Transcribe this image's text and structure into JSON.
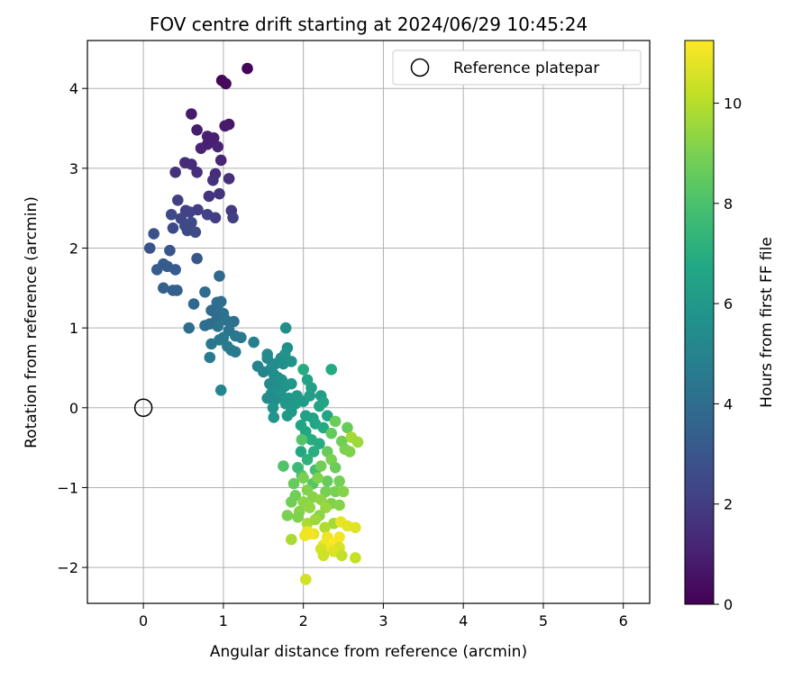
{
  "chart_data": {
    "type": "scatter",
    "title": "FOV centre drift starting at 2024/06/29 10:45:24",
    "xlabel": "Angular distance from reference (arcmin)",
    "ylabel": "Rotation from reference (arcmin)",
    "xlim": [
      -0.7,
      6.33
    ],
    "ylim": [
      -2.45,
      4.6
    ],
    "xticks": [
      0,
      1,
      2,
      3,
      4,
      5,
      6
    ],
    "yticks": [
      -2,
      -1,
      0,
      1,
      2,
      3,
      4
    ],
    "grid": true,
    "legend": {
      "placement": "top-right",
      "entries": [
        "Reference platepar"
      ]
    },
    "colorbar": {
      "label": "Hours from first FF file",
      "range": [
        0,
        11.25
      ],
      "ticks": [
        0,
        2,
        4,
        6,
        8,
        10
      ],
      "colormap": "viridis"
    },
    "reference_point": {
      "x": 0,
      "y": 0,
      "label": "Reference platepar"
    },
    "series": [
      {
        "points": [
          [
            0.98,
            4.1,
            0.2
          ],
          [
            1.03,
            4.06,
            0.3
          ],
          [
            1.3,
            4.25,
            0.1
          ],
          [
            0.6,
            3.68,
            0.8
          ],
          [
            0.67,
            3.48,
            0.9
          ],
          [
            1.07,
            3.55,
            0.7
          ],
          [
            1.02,
            3.53,
            0.8
          ],
          [
            0.8,
            3.4,
            1.0
          ],
          [
            0.88,
            3.38,
            1.0
          ],
          [
            0.93,
            3.27,
            1.1
          ],
          [
            0.72,
            3.25,
            1.1
          ],
          [
            0.8,
            3.3,
            1.0
          ],
          [
            0.97,
            3.1,
            1.2
          ],
          [
            0.52,
            3.07,
            1.4
          ],
          [
            0.6,
            3.05,
            1.4
          ],
          [
            0.4,
            2.95,
            1.6
          ],
          [
            0.67,
            2.95,
            1.5
          ],
          [
            0.9,
            2.93,
            1.4
          ],
          [
            1.07,
            2.87,
            1.5
          ],
          [
            0.87,
            2.85,
            1.6
          ],
          [
            0.95,
            2.68,
            1.7
          ],
          [
            0.82,
            2.65,
            1.7
          ],
          [
            0.43,
            2.6,
            2.1
          ],
          [
            0.53,
            2.47,
            2.1
          ],
          [
            0.68,
            2.48,
            2.0
          ],
          [
            0.58,
            2.45,
            2.2
          ],
          [
            1.1,
            2.47,
            1.9
          ],
          [
            0.35,
            2.42,
            2.4
          ],
          [
            0.8,
            2.42,
            2.2
          ],
          [
            0.9,
            2.38,
            2.0
          ],
          [
            1.12,
            2.38,
            2.1
          ],
          [
            0.47,
            2.37,
            2.3
          ],
          [
            0.6,
            2.32,
            2.4
          ],
          [
            0.52,
            2.28,
            2.5
          ],
          [
            0.37,
            2.25,
            2.5
          ],
          [
            0.55,
            2.22,
            2.5
          ],
          [
            0.65,
            2.2,
            2.6
          ],
          [
            0.13,
            2.18,
            2.8
          ],
          [
            0.08,
            2.0,
            2.9
          ],
          [
            0.33,
            1.97,
            3.0
          ],
          [
            0.67,
            1.87,
            3.0
          ],
          [
            0.25,
            1.8,
            3.2
          ],
          [
            0.3,
            1.77,
            3.2
          ],
          [
            0.17,
            1.73,
            3.3
          ],
          [
            0.4,
            1.73,
            3.2
          ],
          [
            0.95,
            1.65,
            3.8
          ],
          [
            0.25,
            1.5,
            3.5
          ],
          [
            0.37,
            1.47,
            3.4
          ],
          [
            0.42,
            1.47,
            3.4
          ],
          [
            0.77,
            1.45,
            4.0
          ],
          [
            0.97,
            1.33,
            4.0
          ],
          [
            0.63,
            1.3,
            3.8
          ],
          [
            0.92,
            1.32,
            4.1
          ],
          [
            0.85,
            1.22,
            3.9
          ],
          [
            0.95,
            1.2,
            4.1
          ],
          [
            1.0,
            1.18,
            4.2
          ],
          [
            0.92,
            1.12,
            4.0
          ],
          [
            1.03,
            1.1,
            4.3
          ],
          [
            0.83,
            1.05,
            4.0
          ],
          [
            1.13,
            1.08,
            4.2
          ],
          [
            0.77,
            1.03,
            4.1
          ],
          [
            0.93,
            1.02,
            4.3
          ],
          [
            0.57,
            1.0,
            4.0
          ],
          [
            1.07,
            0.97,
            4.3
          ],
          [
            1.15,
            0.9,
            4.5
          ],
          [
            1.0,
            0.88,
            4.6
          ],
          [
            0.95,
            0.85,
            4.5
          ],
          [
            1.22,
            0.88,
            4.5
          ],
          [
            0.85,
            0.8,
            4.5
          ],
          [
            1.05,
            0.77,
            4.6
          ],
          [
            1.1,
            0.72,
            4.7
          ],
          [
            1.15,
            0.7,
            4.6
          ],
          [
            0.83,
            0.63,
            4.6
          ],
          [
            1.38,
            0.82,
            4.8
          ],
          [
            1.78,
            1.0,
            5.5
          ],
          [
            0.97,
            0.22,
            5.1
          ],
          [
            1.43,
            0.52,
            5.0
          ],
          [
            1.55,
            0.62,
            5.2
          ],
          [
            1.55,
            0.67,
            5.3
          ],
          [
            1.65,
            0.55,
            5.4
          ],
          [
            1.72,
            0.62,
            5.5
          ],
          [
            1.8,
            0.75,
            5.6
          ],
          [
            1.77,
            0.67,
            5.7
          ],
          [
            1.75,
            0.55,
            5.6
          ],
          [
            1.85,
            0.58,
            5.7
          ],
          [
            1.6,
            0.5,
            5.4
          ],
          [
            1.5,
            0.45,
            5.1
          ],
          [
            1.63,
            0.42,
            5.4
          ],
          [
            1.68,
            0.38,
            5.6
          ],
          [
            1.73,
            0.35,
            5.6
          ],
          [
            1.58,
            0.3,
            5.3
          ],
          [
            1.67,
            0.25,
            5.5
          ],
          [
            1.77,
            0.27,
            5.7
          ],
          [
            1.85,
            0.3,
            5.9
          ],
          [
            1.6,
            0.18,
            5.6
          ],
          [
            1.73,
            0.15,
            5.8
          ],
          [
            1.82,
            0.12,
            5.9
          ],
          [
            1.92,
            0.15,
            6.0
          ],
          [
            1.55,
            0.12,
            5.3
          ],
          [
            1.65,
            0.1,
            5.5
          ],
          [
            1.78,
            0.05,
            5.9
          ],
          [
            1.9,
            0.05,
            6.0
          ],
          [
            2.0,
            0.08,
            6.1
          ],
          [
            2.08,
            0.15,
            6.2
          ],
          [
            2.1,
            0.25,
            6.3
          ],
          [
            2.22,
            0.15,
            6.2
          ],
          [
            2.05,
            0.35,
            6.5
          ],
          [
            1.62,
            0.0,
            5.7
          ],
          [
            1.85,
            -0.05,
            6.0
          ],
          [
            2.2,
            0.02,
            6.5
          ],
          [
            2.35,
            0.48,
            6.8
          ],
          [
            2.0,
            0.48,
            6.9
          ],
          [
            2.25,
            0.07,
            6.6
          ],
          [
            1.63,
            -0.12,
            5.8
          ],
          [
            1.8,
            -0.1,
            6.0
          ],
          [
            2.03,
            -0.1,
            6.4
          ],
          [
            2.12,
            -0.13,
            6.5
          ],
          [
            2.3,
            -0.1,
            6.6
          ],
          [
            1.97,
            -0.22,
            6.6
          ],
          [
            2.15,
            -0.2,
            6.7
          ],
          [
            2.4,
            -0.17,
            8.7
          ],
          [
            2.25,
            -0.25,
            6.8
          ],
          [
            2.55,
            -0.25,
            8.6
          ],
          [
            2.03,
            -0.3,
            6.7
          ],
          [
            2.1,
            -0.4,
            6.9
          ],
          [
            2.35,
            -0.32,
            8.5
          ],
          [
            1.98,
            -0.4,
            8.2
          ],
          [
            1.97,
            -0.55,
            6.7
          ],
          [
            2.2,
            -0.45,
            6.9
          ],
          [
            2.48,
            -0.42,
            8.8
          ],
          [
            2.6,
            -0.37,
            9.7
          ],
          [
            2.68,
            -0.43,
            9.6
          ],
          [
            2.13,
            -0.55,
            7.0
          ],
          [
            2.05,
            -0.65,
            7.2
          ],
          [
            2.3,
            -0.55,
            8.6
          ],
          [
            2.52,
            -0.52,
            9.0
          ],
          [
            2.58,
            -0.55,
            9.1
          ],
          [
            2.35,
            -0.65,
            9.0
          ],
          [
            1.93,
            -0.75,
            7.6
          ],
          [
            2.15,
            -0.78,
            7.8
          ],
          [
            2.4,
            -0.75,
            8.7
          ],
          [
            1.75,
            -0.73,
            8.1
          ],
          [
            2.22,
            -0.73,
            8.8
          ],
          [
            1.98,
            -0.85,
            8.0
          ],
          [
            2.12,
            -0.95,
            8.2
          ],
          [
            2.3,
            -0.92,
            8.6
          ],
          [
            1.88,
            -0.95,
            8.6
          ],
          [
            2.0,
            -0.88,
            9.0
          ],
          [
            2.18,
            -0.88,
            9.1
          ],
          [
            2.45,
            -0.92,
            8.9
          ],
          [
            2.05,
            -1.03,
            9.1
          ],
          [
            2.28,
            -1.05,
            8.9
          ],
          [
            1.9,
            -1.1,
            8.8
          ],
          [
            2.12,
            -1.12,
            9.2
          ],
          [
            2.4,
            -1.05,
            9.0
          ],
          [
            2.5,
            -1.05,
            9.2
          ],
          [
            2.0,
            -1.18,
            9.3
          ],
          [
            2.22,
            -1.15,
            9.3
          ],
          [
            2.35,
            -1.2,
            9.1
          ],
          [
            2.45,
            -1.22,
            9.2
          ],
          [
            1.95,
            -1.3,
            9.2
          ],
          [
            1.85,
            -1.18,
            8.8
          ],
          [
            2.08,
            -1.25,
            9.4
          ],
          [
            2.28,
            -1.25,
            9.5
          ],
          [
            1.93,
            -1.37,
            9.1
          ],
          [
            2.2,
            -1.35,
            9.3
          ],
          [
            2.38,
            -1.45,
            9.7
          ],
          [
            1.8,
            -1.35,
            9.0
          ],
          [
            2.05,
            -1.45,
            9.8
          ],
          [
            2.15,
            -1.4,
            9.6
          ],
          [
            2.27,
            -1.5,
            9.9
          ],
          [
            2.47,
            -1.43,
            10.9
          ],
          [
            2.55,
            -1.48,
            10.8
          ],
          [
            2.65,
            -1.5,
            10.7
          ],
          [
            2.05,
            -1.55,
            10.8
          ],
          [
            2.13,
            -1.58,
            10.9
          ],
          [
            2.08,
            -1.58,
            11.1
          ],
          [
            2.02,
            -1.6,
            11.0
          ],
          [
            2.3,
            -1.62,
            11.0
          ],
          [
            2.38,
            -1.7,
            11.2
          ],
          [
            2.45,
            -1.62,
            11.1
          ],
          [
            2.25,
            -1.72,
            11.0
          ],
          [
            2.45,
            -1.75,
            10.6
          ],
          [
            2.33,
            -1.77,
            11.1
          ],
          [
            2.22,
            -1.77,
            10.5
          ],
          [
            2.38,
            -1.8,
            10.7
          ],
          [
            1.85,
            -1.65,
            9.8
          ],
          [
            2.25,
            -1.85,
            10.4
          ],
          [
            2.48,
            -1.85,
            10.2
          ],
          [
            2.65,
            -1.88,
            10.3
          ],
          [
            2.03,
            -2.15,
            10.5
          ]
        ]
      }
    ]
  }
}
